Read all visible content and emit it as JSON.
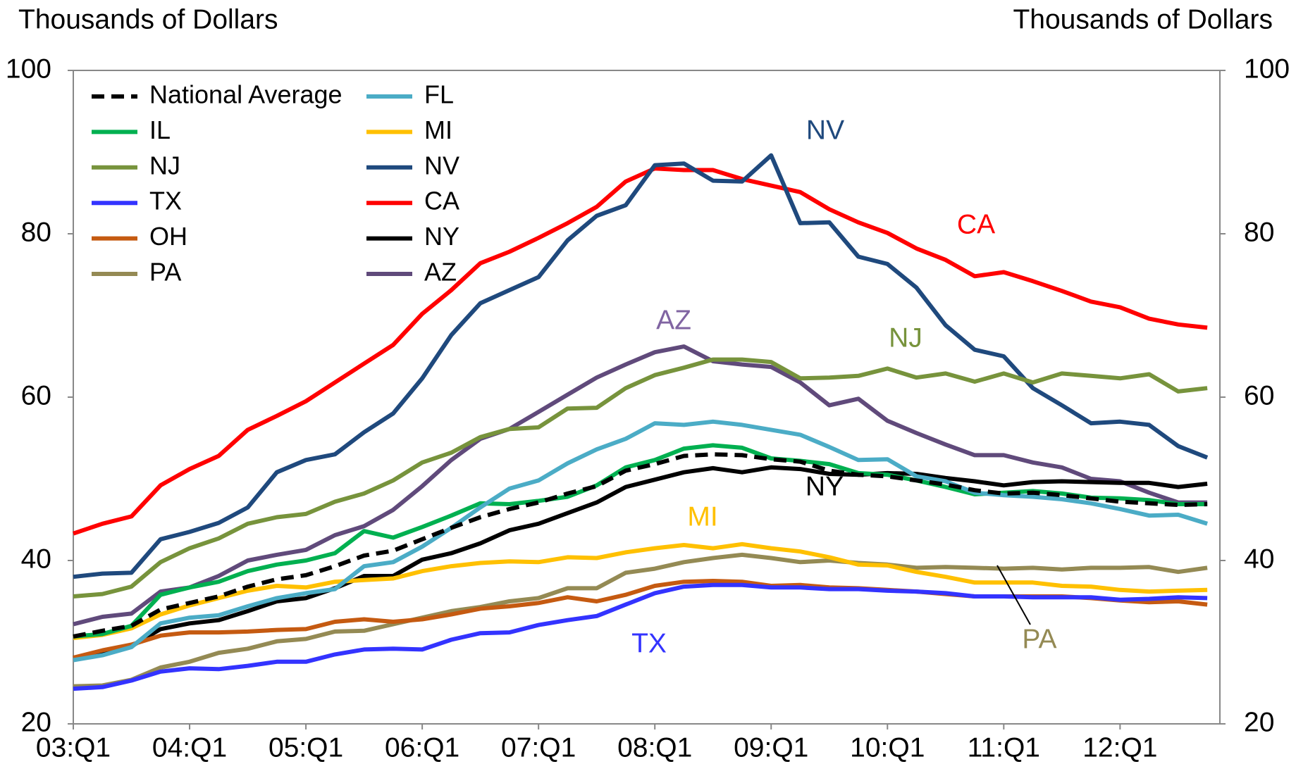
{
  "chart_data": {
    "type": "line",
    "y_label": "Thousands of Dollars",
    "y2_label": "Thousands of Dollars",
    "categories": [
      "03:Q1",
      null,
      null,
      null,
      "04:Q1",
      null,
      null,
      null,
      "05:Q1",
      null,
      null,
      null,
      "06:Q1",
      null,
      null,
      null,
      "07:Q1",
      null,
      null,
      null,
      "08:Q1",
      null,
      null,
      null,
      "09:Q1",
      null,
      null,
      null,
      "10:Q1",
      null,
      null,
      null,
      "11:Q1",
      null,
      null,
      null,
      "12:Q1",
      null,
      null,
      null
    ],
    "ylim": [
      20,
      100
    ],
    "yticks": [
      20,
      40,
      60,
      80,
      100
    ],
    "y2lim": [
      20,
      100
    ],
    "y2ticks": [
      20,
      40,
      60,
      80,
      100
    ],
    "legend": "top-left",
    "series": [
      {
        "name": "National Average",
        "color": "#000000",
        "dashed": true,
        "values": [
          30.7,
          31.4,
          32,
          34,
          34.8,
          35.6,
          36.8,
          37.7,
          38.2,
          39.3,
          40.6,
          41.2,
          42.6,
          44,
          45.3,
          46.3,
          47.1,
          48.2,
          49.1,
          51,
          51.8,
          52.8,
          53,
          52.9,
          52.4,
          52.1,
          51,
          50.5,
          50.3,
          49.8,
          49.3,
          48.6,
          48.2,
          48.3,
          48,
          47.6,
          47.2,
          47,
          46.8,
          46.9
        ]
      },
      {
        "name": "FL",
        "color": "#4bacc6",
        "values": [
          27.8,
          28.4,
          29.4,
          32.3,
          33,
          33.3,
          34.4,
          35.4,
          36,
          36.5,
          39.3,
          39.8,
          41.7,
          44,
          46.5,
          48.8,
          49.8,
          51.9,
          53.6,
          54.9,
          56.8,
          56.6,
          57,
          56.6,
          56,
          55.4,
          53.9,
          52.3,
          52.4,
          50.3,
          49.7,
          48.3,
          48,
          47.8,
          47.5,
          47,
          46.3,
          45.5,
          45.6,
          44.5
        ]
      },
      {
        "name": "IL",
        "color": "#00b050",
        "values": [
          30.7,
          31,
          32,
          35.8,
          36.7,
          37.4,
          38.7,
          39.5,
          40,
          40.9,
          43.6,
          42.8,
          44.1,
          45.5,
          47,
          46.9,
          47.3,
          47.8,
          49.2,
          51.4,
          52.3,
          53.7,
          54.1,
          53.8,
          52.5,
          52.2,
          51.8,
          50.7,
          50.5,
          49.8,
          49,
          48.1,
          48.3,
          48.5,
          48.2,
          47.7,
          47.6,
          47.4,
          46.9,
          46.9
        ]
      },
      {
        "name": "MI",
        "color": "#ffc000",
        "values": [
          30.5,
          30.9,
          31.7,
          33.4,
          34.5,
          35.4,
          36.3,
          36.9,
          36.7,
          37.4,
          37.6,
          37.8,
          38.7,
          39.3,
          39.7,
          39.9,
          39.8,
          40.4,
          40.3,
          41,
          41.5,
          41.9,
          41.5,
          42,
          41.5,
          41.1,
          40.4,
          39.5,
          39.4,
          38.6,
          38,
          37.3,
          37.3,
          37.3,
          36.9,
          36.8,
          36.4,
          36.2,
          36.3,
          36.4
        ]
      },
      {
        "name": "NJ",
        "color": "#77933c",
        "values": [
          35.6,
          35.9,
          36.8,
          39.8,
          41.5,
          42.7,
          44.5,
          45.3,
          45.7,
          47.2,
          48.2,
          49.8,
          52,
          53.2,
          55.1,
          56.1,
          56.3,
          58.6,
          58.7,
          61.1,
          62.7,
          63.6,
          64.6,
          64.6,
          64.3,
          62.3,
          62.4,
          62.6,
          63.5,
          62.4,
          62.9,
          61.9,
          62.9,
          61.8,
          62.9,
          62.6,
          62.3,
          62.8,
          60.7,
          61.1
        ]
      },
      {
        "name": "NV",
        "color": "#1f497d",
        "values": [
          38,
          38.4,
          38.5,
          42.6,
          43.5,
          44.6,
          46.5,
          50.8,
          52.3,
          53,
          55.7,
          58,
          62.3,
          67.6,
          71.5,
          73.1,
          74.7,
          79.2,
          82.2,
          83.5,
          88.4,
          88.6,
          86.5,
          86.4,
          89.6,
          81.3,
          81.4,
          77.2,
          76.3,
          73.4,
          68.8,
          65.8,
          65,
          61.1,
          59,
          56.8,
          57,
          56.6,
          54,
          52.6
        ]
      },
      {
        "name": "TX",
        "color": "#3333ff",
        "values": [
          24.3,
          24.5,
          25.3,
          26.4,
          26.8,
          26.7,
          27.1,
          27.6,
          27.6,
          28.5,
          29.1,
          29.2,
          29.1,
          30.3,
          31.1,
          31.2,
          32.1,
          32.7,
          33.2,
          34.6,
          36,
          36.8,
          37,
          37,
          36.7,
          36.7,
          36.5,
          36.5,
          36.3,
          36.2,
          36,
          35.6,
          35.6,
          35.5,
          35.5,
          35.5,
          35.2,
          35.3,
          35.5,
          35.4
        ]
      },
      {
        "name": "CA",
        "color": "#ff0000",
        "values": [
          43.3,
          44.5,
          45.4,
          49.2,
          51.2,
          52.8,
          56,
          57.7,
          59.5,
          61.8,
          64.1,
          66.4,
          70.2,
          73.1,
          76.4,
          77.8,
          79.5,
          81.3,
          83.3,
          86.4,
          88,
          87.8,
          87.8,
          86.7,
          85.9,
          85.1,
          83,
          81.4,
          80.1,
          78.2,
          76.8,
          74.8,
          75.3,
          74.2,
          73,
          71.7,
          71,
          69.6,
          68.9,
          68.5
        ]
      },
      {
        "name": "OH",
        "color": "#c55a11",
        "values": [
          28.1,
          29,
          29.7,
          30.8,
          31.2,
          31.2,
          31.3,
          31.5,
          31.6,
          32.5,
          32.8,
          32.5,
          32.8,
          33.4,
          34.1,
          34.4,
          34.8,
          35.5,
          35,
          35.8,
          36.9,
          37.4,
          37.5,
          37.4,
          36.9,
          37,
          36.7,
          36.6,
          36.4,
          36.2,
          35.9,
          35.6,
          35.6,
          35.6,
          35.6,
          35.4,
          35.1,
          34.9,
          35,
          34.6
        ]
      },
      {
        "name": "NY",
        "color": "#000000",
        "values": [
          28.1,
          28.6,
          29.5,
          31.6,
          32.3,
          32.7,
          33.8,
          35,
          35.4,
          36.6,
          38.1,
          38.1,
          40.1,
          40.9,
          42.1,
          43.7,
          44.5,
          45.8,
          47.1,
          49,
          49.9,
          50.8,
          51.3,
          50.8,
          51.4,
          51.2,
          50.6,
          50.5,
          50.7,
          50.6,
          50.1,
          49.7,
          49.2,
          49.6,
          49.7,
          49.6,
          49.5,
          49.5,
          49,
          49.4
        ]
      },
      {
        "name": "PA",
        "color": "#948a54",
        "values": [
          24.6,
          24.7,
          25.4,
          26.9,
          27.6,
          28.7,
          29.2,
          30.1,
          30.4,
          31.3,
          31.4,
          32.2,
          33,
          33.8,
          34.3,
          35,
          35.4,
          36.6,
          36.6,
          38.5,
          39,
          39.8,
          40.3,
          40.7,
          40.3,
          39.8,
          40,
          39.7,
          39.5,
          39.1,
          39.2,
          39.1,
          39,
          39.1,
          38.9,
          39.1,
          39.1,
          39.2,
          38.6,
          39.1
        ]
      },
      {
        "name": "AZ",
        "color": "#604a7b",
        "values": [
          32.2,
          33.1,
          33.5,
          36.2,
          36.7,
          38.1,
          40,
          40.7,
          41.3,
          43.1,
          44.2,
          46.2,
          49.1,
          52.3,
          54.9,
          56.1,
          58.2,
          60.3,
          62.4,
          64,
          65.5,
          66.2,
          64.4,
          64,
          63.7,
          61.8,
          59,
          59.8,
          57.1,
          55.6,
          54.2,
          52.9,
          52.9,
          52,
          51.4,
          50,
          49.7,
          48.3,
          47.1,
          47.1
        ]
      }
    ],
    "annotations": [
      {
        "text": "NV",
        "color": "#1f497d"
      },
      {
        "text": "CA",
        "color": "#ff0000"
      },
      {
        "text": "AZ",
        "color": "#8064a2"
      },
      {
        "text": "NJ",
        "color": "#77933c"
      },
      {
        "text": "MI",
        "color": "#ffc000"
      },
      {
        "text": "NY",
        "color": "#000000"
      },
      {
        "text": "TX",
        "color": "#3333ff"
      },
      {
        "text": "PA",
        "color": "#948a54"
      }
    ]
  }
}
